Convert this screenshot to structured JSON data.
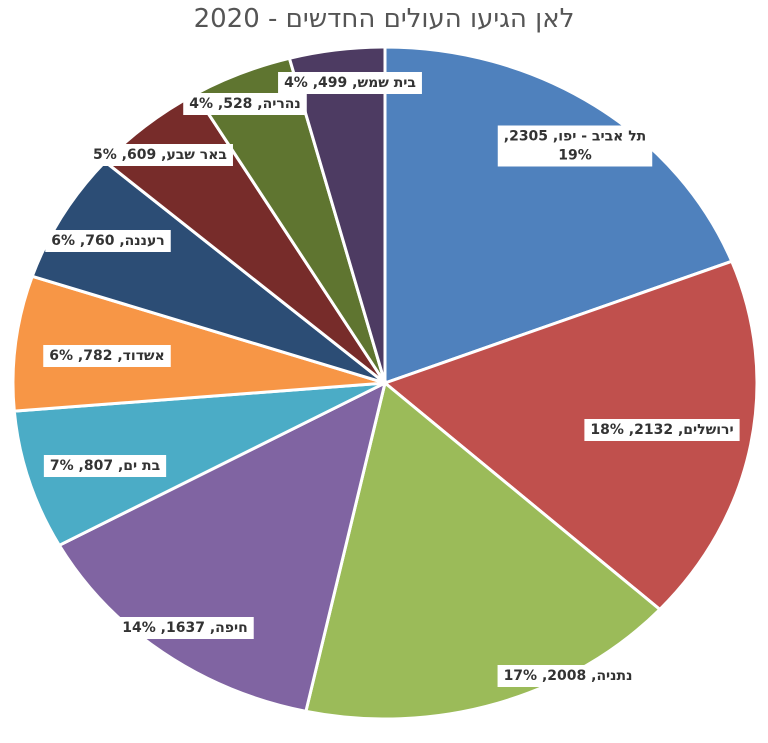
{
  "chart_data": {
    "type": "pie",
    "title": "לאן הגיעו העולים החדשים - 2020",
    "slices": [
      {
        "name": "תל אביב - יפו",
        "value": 2305,
        "percent": "19%",
        "label": "תל אביב - יפו, 2305,",
        "label2": "19%",
        "color": "#4F81BD"
      },
      {
        "name": "ירושלים",
        "value": 2132,
        "percent": "18%",
        "label": "ירושלים, 2132, 18%",
        "color": "#C0504D"
      },
      {
        "name": "נתניה",
        "value": 2008,
        "percent": "17%",
        "label": "נתניה, 2008, 17%",
        "color": "#9BBB59"
      },
      {
        "name": "חיפה",
        "value": 1637,
        "percent": "14%",
        "label": "חיפה, 1637, 14%",
        "color": "#8064A2"
      },
      {
        "name": "בת ים",
        "value": 807,
        "percent": "7%",
        "label": "בת ים, 807, 7%",
        "color": "#4BACC6"
      },
      {
        "name": "אשדוד",
        "value": 782,
        "percent": "6%",
        "label": "אשדוד, 782, 6%",
        "color": "#F79646"
      },
      {
        "name": "רעננה",
        "value": 760,
        "percent": "6%",
        "label": "רעננה, 760, 6%",
        "color": "#2C4D75"
      },
      {
        "name": "באר שבע",
        "value": 609,
        "percent": "5%",
        "label": "באר שבע, 609, 5%",
        "color": "#772C2A"
      },
      {
        "name": "נהריה",
        "value": 528,
        "percent": "4%",
        "label": "נהריה, 528, 4%",
        "color": "#5F7530"
      },
      {
        "name": "בית שמש",
        "value": 499,
        "percent": "4%",
        "label": "בית שמש, 499, 4%",
        "color": "#4D3B62"
      }
    ]
  }
}
